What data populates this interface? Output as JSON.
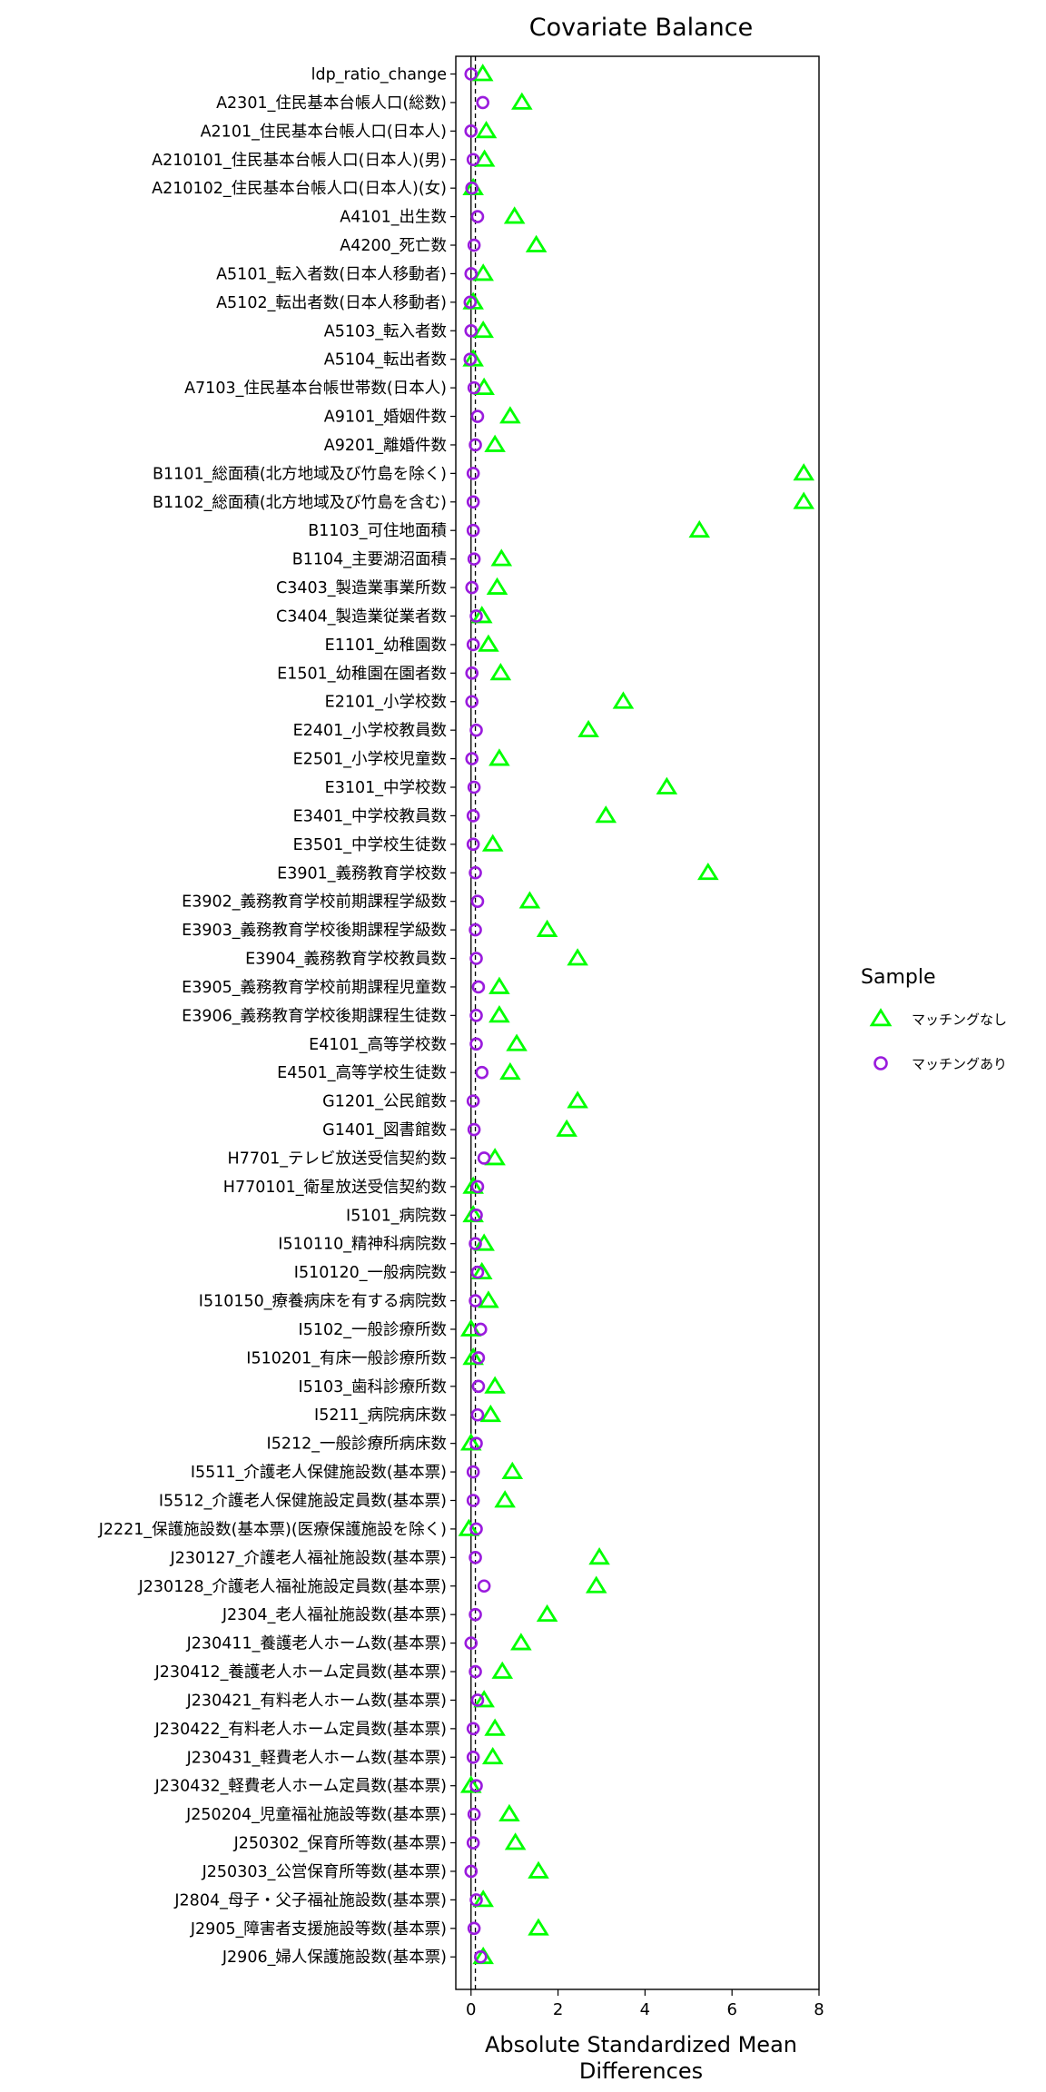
{
  "chart_data": {
    "type": "scatter",
    "title": "Covariate Balance",
    "xlabel": "Absolute Standardized Mean\nDifferences",
    "ylabel": "",
    "xlim": [
      -0.35,
      8.0
    ],
    "xticks": [
      0,
      2,
      4,
      6,
      8
    ],
    "threshold": 0.1,
    "grid": false,
    "legend": {
      "title": "Sample",
      "position": "right"
    },
    "series": [
      {
        "name": "マッチングなし",
        "marker": "triangle",
        "color": "#00ff00"
      },
      {
        "name": "マッチングあり",
        "marker": "circle",
        "color": "#9a1bdd"
      }
    ],
    "categories": [
      "ldp_ratio_change",
      "A2301_住民基本台帳人口(総数)",
      "A2101_住民基本台帳人口(日本人)",
      "A210101_住民基本台帳人口(日本人)(男)",
      "A210102_住民基本台帳人口(日本人)(女)",
      "A4101_出生数",
      "A4200_死亡数",
      "A5101_転入者数(日本人移動者)",
      "A5102_転出者数(日本人移動者)",
      "A5103_転入者数",
      "A5104_転出者数",
      "A7103_住民基本台帳世帯数(日本人)",
      "A9101_婚姻件数",
      "A9201_離婚件数",
      "B1101_総面積(北方地域及び竹島を除く)",
      "B1102_総面積(北方地域及び竹島を含む)",
      "B1103_可住地面積",
      "B1104_主要湖沼面積",
      "C3403_製造業事業所数",
      "C3404_製造業従業者数",
      "E1101_幼稚園数",
      "E1501_幼稚園在園者数",
      "E2101_小学校数",
      "E2401_小学校教員数",
      "E2501_小学校児童数",
      "E3101_中学校数",
      "E3401_中学校教員数",
      "E3501_中学校生徒数",
      "E3901_義務教育学校数",
      "E3902_義務教育学校前期課程学級数",
      "E3903_義務教育学校後期課程学級数",
      "E3904_義務教育学校教員数",
      "E3905_義務教育学校前期課程児童数",
      "E3906_義務教育学校後期課程生徒数",
      "E4101_高等学校数",
      "E4501_高等学校生徒数",
      "G1201_公民館数",
      "G1401_図書館数",
      "H7701_テレビ放送受信契約数",
      "H770101_衛星放送受信契約数",
      "I5101_病院数",
      "I510110_精神科病院数",
      "I510120_一般病院数",
      "I510150_療養病床を有する病院数",
      "I5102_一般診療所数",
      "I510201_有床一般診療所数",
      "I5103_歯科診療所数",
      "I5211_病院病床数",
      "I5212_一般診療所病床数",
      "I5511_介護老人保健施設数(基本票)",
      "I5512_介護老人保健施設定員数(基本票)",
      "J2221_保護施設数(基本票)(医療保護施設を除く)",
      "J230127_介護老人福祉施設数(基本票)",
      "J230128_介護老人福祉施設定員数(基本票)",
      "J2304_老人福祉施設数(基本票)",
      "J230411_養護老人ホーム数(基本票)",
      "J230412_養護老人ホーム定員数(基本票)",
      "J230421_有料老人ホーム数(基本票)",
      "J230422_有料老人ホーム定員数(基本票)",
      "J230431_軽費老人ホーム数(基本票)",
      "J230432_軽費老人ホーム定員数(基本票)",
      "J250204_児童福祉施設等数(基本票)",
      "J250302_保育所等数(基本票)",
      "J250303_公営保育所等数(基本票)",
      "J2804_母子・父子福祉施設数(基本票)",
      "J2905_障害者支援施設等数(基本票)",
      "J2906_婦人保護施設数(基本票)"
    ],
    "unmatched": [
      0.27,
      1.17,
      0.35,
      0.31,
      0.05,
      1.0,
      1.5,
      0.28,
      0.05,
      0.28,
      0.05,
      0.3,
      0.9,
      0.55,
      7.65,
      7.65,
      5.25,
      0.7,
      0.6,
      0.25,
      0.4,
      0.68,
      3.5,
      2.7,
      0.65,
      4.5,
      3.1,
      0.5,
      5.45,
      1.35,
      1.75,
      2.45,
      0.65,
      0.65,
      1.05,
      0.9,
      2.45,
      2.2,
      0.55,
      0.05,
      0.05,
      0.3,
      0.25,
      0.4,
      0.0,
      0.05,
      0.55,
      0.45,
      0.0,
      0.95,
      0.78,
      -0.05,
      2.95,
      2.88,
      1.75,
      1.15,
      0.72,
      0.3,
      0.55,
      0.5,
      0.0,
      0.88,
      1.02,
      1.55,
      0.28,
      1.55,
      0.28
    ],
    "matched": [
      0.0,
      0.27,
      0.0,
      0.05,
      0.02,
      0.15,
      0.07,
      0.0,
      -0.02,
      0.0,
      -0.02,
      0.07,
      0.15,
      0.1,
      0.05,
      0.05,
      0.05,
      0.07,
      0.02,
      0.12,
      0.05,
      0.02,
      0.02,
      0.12,
      0.02,
      0.07,
      0.05,
      0.05,
      0.1,
      0.15,
      0.1,
      0.12,
      0.17,
      0.12,
      0.12,
      0.25,
      0.05,
      0.07,
      0.3,
      0.15,
      0.12,
      0.1,
      0.15,
      0.1,
      0.22,
      0.17,
      0.17,
      0.15,
      0.12,
      0.05,
      0.05,
      0.12,
      0.1,
      0.3,
      0.1,
      0.0,
      0.1,
      0.15,
      0.05,
      0.05,
      0.12,
      0.07,
      0.05,
      0.0,
      0.12,
      0.07,
      0.22
    ]
  }
}
